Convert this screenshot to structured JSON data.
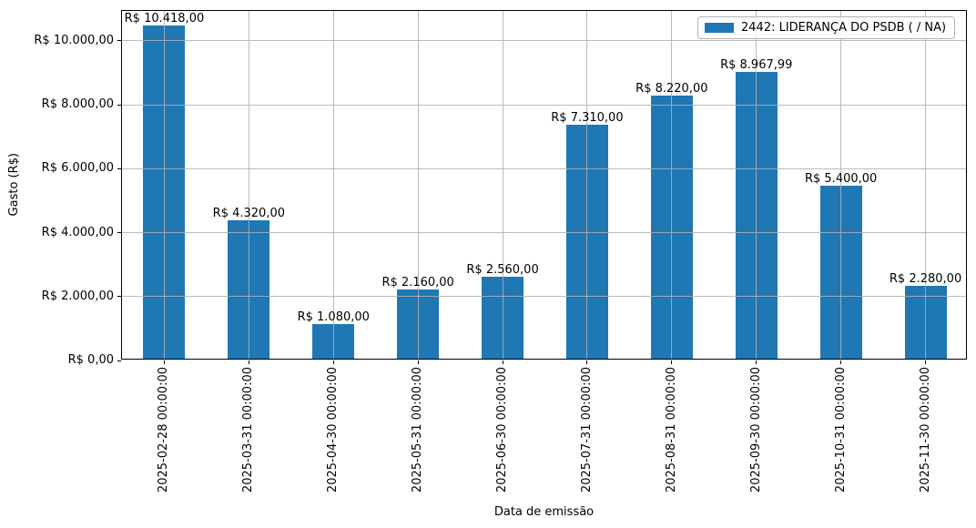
{
  "chart_data": {
    "type": "bar",
    "title": "",
    "xlabel": "Data de emissão",
    "ylabel": "Gasto (R$)",
    "categories": [
      "2025-02-28 00:00:00",
      "2025-03-31 00:00:00",
      "2025-04-30 00:00:00",
      "2025-05-31 00:00:00",
      "2025-06-30 00:00:00",
      "2025-07-31 00:00:00",
      "2025-08-31 00:00:00",
      "2025-09-30 00:00:00",
      "2025-10-31 00:00:00",
      "2025-11-30 00:00:00"
    ],
    "series": [
      {
        "name": "2442: LIDERANÇA DO PSDB ( / NA)",
        "values": [
          10418.0,
          4320.0,
          1080.0,
          2160.0,
          2560.0,
          7310.0,
          8220.0,
          8967.99,
          5400.0,
          2280.0
        ]
      }
    ],
    "bar_labels": [
      "R$ 10.418,00",
      "R$ 4.320,00",
      "R$ 1.080,00",
      "R$ 2.160,00",
      "R$ 2.560,00",
      "R$ 7.310,00",
      "R$ 8.220,00",
      "R$ 8.967,99",
      "R$ 5.400,00",
      "R$ 2.280,00"
    ],
    "ytick_values": [
      0,
      2000,
      4000,
      6000,
      8000,
      10000
    ],
    "ytick_labels": [
      "R$ 0,00",
      "R$ 2.000,00",
      "R$ 4.000,00",
      "R$ 6.000,00",
      "R$ 8.000,00",
      "R$ 10.000,00"
    ],
    "ylim": [
      0,
      10939
    ],
    "grid": true,
    "legend_position": "upper right",
    "colors": {
      "bar": "#1f77b4",
      "grid": "#b0b0b0",
      "spine": "#000000"
    }
  },
  "legend": {
    "label": "2442: LIDERANÇA DO PSDB ( / NA)"
  }
}
